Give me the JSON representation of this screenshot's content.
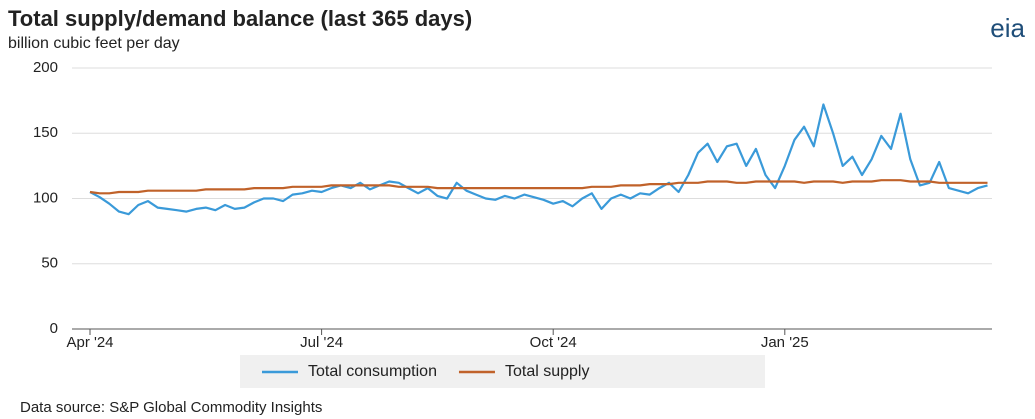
{
  "chart_data": {
    "type": "line",
    "title": "Total supply/demand balance (last 365 days)",
    "subtitle": "billion cubic feet per day",
    "logo": "eia",
    "source": "Data source: S&P Global Commodity Insights",
    "categories": [
      "Apr '24",
      null,
      null,
      null,
      null,
      null,
      null,
      null,
      null,
      null,
      null,
      null,
      null,
      null,
      null,
      null,
      null,
      null,
      null,
      null,
      null,
      null,
      null,
      null,
      "Jul '24",
      null,
      null,
      null,
      null,
      null,
      null,
      null,
      null,
      null,
      null,
      null,
      null,
      null,
      null,
      null,
      null,
      null,
      null,
      null,
      null,
      null,
      null,
      null,
      "Oct '24",
      null,
      null,
      null,
      null,
      null,
      null,
      null,
      null,
      null,
      null,
      null,
      null,
      null,
      null,
      null,
      null,
      null,
      null,
      null,
      null,
      null,
      null,
      null,
      "Jan '25",
      null,
      null,
      null,
      null,
      null,
      null,
      null,
      null,
      null,
      null,
      null,
      null,
      null,
      null,
      null,
      null,
      null,
      null,
      null,
      null,
      null
    ],
    "series": [
      {
        "name": "Total consumption",
        "color": "#3a9ad9",
        "values": [
          105,
          101,
          96,
          90,
          88,
          95,
          98,
          93,
          92,
          91,
          90,
          92,
          93,
          91,
          95,
          92,
          93,
          97,
          100,
          100,
          98,
          103,
          104,
          106,
          105,
          108,
          110,
          108,
          112,
          107,
          110,
          113,
          112,
          108,
          104,
          108,
          102,
          100,
          112,
          106,
          103,
          100,
          99,
          102,
          100,
          103,
          101,
          99,
          96,
          98,
          94,
          100,
          104,
          92,
          100,
          103,
          100,
          104,
          103,
          108,
          112,
          105,
          118,
          135,
          142,
          128,
          140,
          142,
          125,
          138,
          118,
          108,
          125,
          145,
          155,
          140,
          172,
          150,
          125,
          132,
          118,
          130,
          148,
          138,
          165,
          130,
          110,
          112,
          128,
          108,
          106,
          104,
          108,
          110
        ]
      },
      {
        "name": "Total supply",
        "color": "#c0622a",
        "values": [
          105,
          104,
          104,
          105,
          105,
          105,
          106,
          106,
          106,
          106,
          106,
          106,
          107,
          107,
          107,
          107,
          107,
          108,
          108,
          108,
          108,
          109,
          109,
          109,
          109,
          110,
          110,
          110,
          110,
          110,
          110,
          110,
          109,
          109,
          109,
          109,
          108,
          108,
          108,
          108,
          108,
          108,
          108,
          108,
          108,
          108,
          108,
          108,
          108,
          108,
          108,
          108,
          109,
          109,
          109,
          110,
          110,
          110,
          111,
          111,
          111,
          112,
          112,
          112,
          113,
          113,
          113,
          112,
          112,
          113,
          113,
          113,
          113,
          113,
          112,
          113,
          113,
          113,
          112,
          113,
          113,
          113,
          114,
          114,
          114,
          113,
          113,
          113,
          112,
          112,
          112,
          112,
          112,
          112
        ]
      }
    ],
    "ylim": [
      0,
      200
    ],
    "yticks": [
      0,
      50,
      100,
      150,
      200
    ],
    "grid": true
  }
}
